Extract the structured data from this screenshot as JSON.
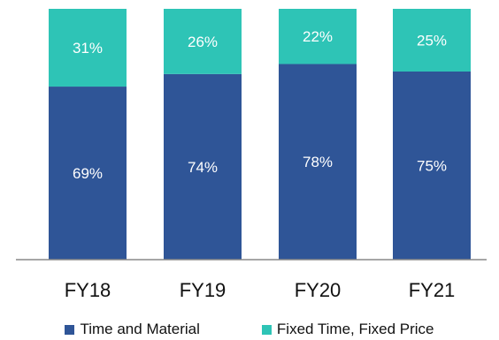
{
  "chart_data": {
    "type": "bar",
    "stacked": true,
    "percent_stacked": true,
    "categories": [
      "FY18",
      "FY19",
      "FY20",
      "FY21"
    ],
    "series": [
      {
        "name": "Time and Material",
        "values": [
          69,
          74,
          78,
          75
        ],
        "labels": [
          "69%",
          "74%",
          "78%",
          "75%"
        ],
        "color": "#2f5597"
      },
      {
        "name": "Fixed Time, Fixed Price",
        "values": [
          31,
          26,
          22,
          25
        ],
        "labels": [
          "31%",
          "26%",
          "22%",
          "25%"
        ],
        "color": "#2ec4b6"
      }
    ],
    "ylim": [
      0,
      100
    ],
    "grid": false,
    "legend_position": "bottom"
  }
}
